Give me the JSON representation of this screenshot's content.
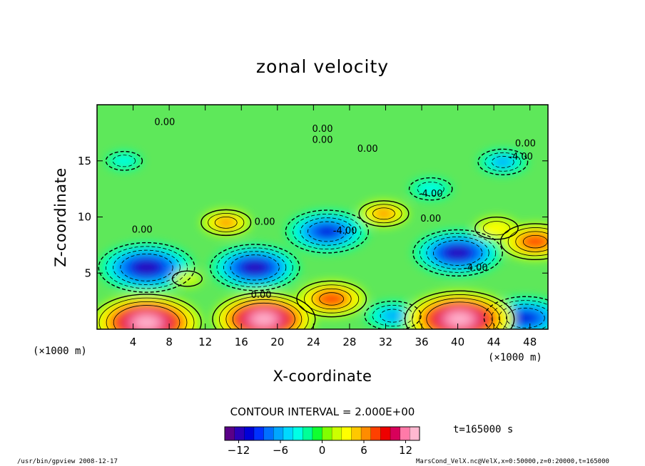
{
  "chart_data": {
    "type": "heatmap",
    "title": "zonal velocity",
    "xlabel": "X-coordinate",
    "ylabel": "Z-coordinate",
    "x_unit_left": "(×1000 m)",
    "x_unit_right": "(×1000 m)",
    "xlim": [
      0,
      50
    ],
    "ylim": [
      0,
      20
    ],
    "x_ticks": [
      4,
      8,
      12,
      16,
      20,
      24,
      28,
      32,
      36,
      40,
      44,
      48
    ],
    "y_ticks": [
      5,
      10,
      15
    ],
    "contour_interval": "CONTOUR INTERVAL = 2.000E+00",
    "time_label": "t=165000 s",
    "contour_labels": [
      {
        "text": "0.00",
        "x": 7.5,
        "y": 18.2
      },
      {
        "text": "0.00",
        "x": 25.0,
        "y": 17.6
      },
      {
        "text": "0.00",
        "x": 25.0,
        "y": 16.6
      },
      {
        "text": "0.00",
        "x": 30.0,
        "y": 15.8
      },
      {
        "text": "0.00",
        "x": 47.5,
        "y": 16.3
      },
      {
        "text": "-4.00",
        "x": 47.0,
        "y": 15.1
      },
      {
        "text": "0.00",
        "x": 5.0,
        "y": 8.6
      },
      {
        "text": "0.00",
        "x": 18.6,
        "y": 9.3
      },
      {
        "text": "-4.00",
        "x": 27.5,
        "y": 8.5
      },
      {
        "text": "-4.00",
        "x": 37.0,
        "y": 11.8
      },
      {
        "text": "0.00",
        "x": 37.0,
        "y": 9.6
      },
      {
        "text": "-4.00",
        "x": 42.0,
        "y": 5.2
      },
      {
        "text": "0.00",
        "x": 18.2,
        "y": 2.8
      }
    ],
    "features": [
      {
        "x": 5.5,
        "y": 5.5,
        "value": -12
      },
      {
        "x": 17.5,
        "y": 5.5,
        "value": -11
      },
      {
        "x": 25.5,
        "y": 8.7,
        "value": -10
      },
      {
        "x": 40.0,
        "y": 6.8,
        "value": -11
      },
      {
        "x": 37.0,
        "y": 12.5,
        "value": -4
      },
      {
        "x": 45.0,
        "y": 14.9,
        "value": -5
      },
      {
        "x": 3.0,
        "y": 15.0,
        "value": -3
      },
      {
        "x": 32.8,
        "y": 1.2,
        "value": -6
      },
      {
        "x": 47.5,
        "y": 1.0,
        "value": -10
      },
      {
        "x": 5.5,
        "y": 0.6,
        "value": 14
      },
      {
        "x": 18.5,
        "y": 0.9,
        "value": 13
      },
      {
        "x": 40.2,
        "y": 0.9,
        "value": 14
      },
      {
        "x": 26.0,
        "y": 2.7,
        "value": 8
      },
      {
        "x": 48.6,
        "y": 7.8,
        "value": 8
      },
      {
        "x": 31.8,
        "y": 10.3,
        "value": 5
      },
      {
        "x": 14.3,
        "y": 9.5,
        "value": 5
      },
      {
        "x": 44.3,
        "y": 9.0,
        "value": 4
      },
      {
        "x": 10.0,
        "y": 4.5,
        "value": 2
      }
    ],
    "colorbar": {
      "min": -14,
      "max": 14,
      "ticks": [
        -12,
        -6,
        0,
        6,
        12
      ],
      "tick_labels": [
        "−12",
        "−6",
        "0",
        "6",
        "12"
      ],
      "colors": [
        "#5a0088",
        "#2b00b8",
        "#0000d8",
        "#0030ff",
        "#0070ff",
        "#00a6ff",
        "#00d8ff",
        "#00ffe6",
        "#00ff98",
        "#10ff30",
        "#80ff00",
        "#ccff00",
        "#ffff00",
        "#ffc800",
        "#ff8c00",
        "#ff4000",
        "#ee0000",
        "#d8005a",
        "#ff7aa8",
        "#ffb8d0"
      ]
    }
  },
  "footer": {
    "left": "/usr/bin/gpview  2008-12-17",
    "right": "MarsCond_VelX.nc@VelX,x=0:50000,z=0:20000,t=165000"
  }
}
